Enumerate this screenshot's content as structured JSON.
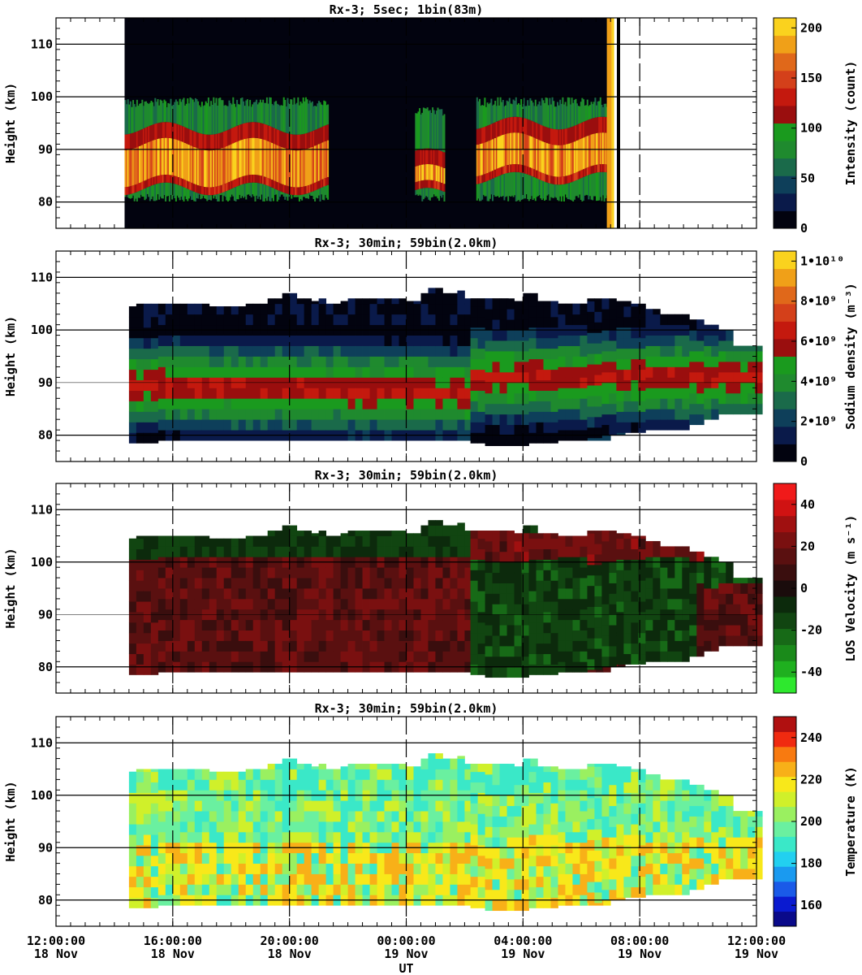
{
  "chart_data": [
    {
      "type": "heatmap",
      "title": "Rx-3;  5sec; 1bin(83m)",
      "ylabel": "Height (km)",
      "ylim": [
        75,
        115
      ],
      "yticks": [
        80,
        90,
        100,
        110
      ],
      "xlim_hours_from_start": [
        0,
        24
      ],
      "colorbar": {
        "label": "Intensity (count)",
        "range": [
          0,
          210
        ],
        "ticks": [
          {
            "value": 0,
            "label": "0"
          },
          {
            "value": 50,
            "label": "50"
          },
          {
            "value": 100,
            "label": "100"
          },
          {
            "value": 150,
            "label": "150"
          },
          {
            "value": 200,
            "label": "200"
          }
        ],
        "colors": [
          "#02030f",
          "#0a1a4a",
          "#0e3f5a",
          "#1a6a4a",
          "#1f8a2e",
          "#1a9a1e",
          "#9a0e0e",
          "#c4190e",
          "#d4401a",
          "#e0681a",
          "#f0a018",
          "#fad21e"
        ]
      },
      "segments": [
        {
          "start": 2.35,
          "end": 9.3,
          "peak": [
            84,
            91
          ],
          "active": [
            80,
            100
          ]
        },
        {
          "start": 12.3,
          "end": 13.3,
          "peak": [
            83,
            86
          ],
          "active": [
            80,
            98
          ]
        },
        {
          "start": 14.4,
          "end": 18.9,
          "peak": [
            86,
            92
          ],
          "active": [
            80,
            100
          ]
        }
      ],
      "data_span": [
        2.35,
        19.0
      ],
      "gridlines": [
        80,
        90,
        100,
        110
      ]
    },
    {
      "type": "heatmap",
      "title": "Rx-3; 30min; 59bin(2.0km)",
      "ylabel": "Height (km)",
      "ylim": [
        75,
        115
      ],
      "yticks": [
        80,
        90,
        100,
        110
      ],
      "colorbar": {
        "label": "Sodium density (m⁻³)",
        "range": [
          0,
          10500000000.0
        ],
        "ticks": [
          {
            "value": 0,
            "label": "0"
          },
          {
            "value": 2000000000.0,
            "label": "2•10⁹"
          },
          {
            "value": 4000000000.0,
            "label": "4•10⁹"
          },
          {
            "value": 6000000000.0,
            "label": "6•10⁹"
          },
          {
            "value": 8000000000.0,
            "label": "8•10⁹"
          },
          {
            "value": 10000000000.0,
            "label": "1•10¹⁰"
          }
        ],
        "colors": [
          "#02030f",
          "#0a1a4a",
          "#0e3f5a",
          "#1a6a4a",
          "#1f8a2e",
          "#1a9a1e",
          "#9a0e0e",
          "#c4190e",
          "#d4401a",
          "#e0681a",
          "#f0a018",
          "#fad21e"
        ]
      },
      "field": "sodium"
    },
    {
      "type": "heatmap",
      "title": "Rx-3; 30min; 59bin(2.0km)",
      "ylabel": "Height (km)",
      "ylim": [
        75,
        115
      ],
      "yticks": [
        80,
        90,
        100,
        110
      ],
      "colorbar": {
        "label": "LOS Velocity (m s⁻¹)",
        "range": [
          -50,
          50
        ],
        "ticks": [
          {
            "value": -40,
            "label": "-40"
          },
          {
            "value": -20,
            "label": "-20"
          },
          {
            "value": 0,
            "label": "0"
          },
          {
            "value": 20,
            "label": "20"
          },
          {
            "value": 40,
            "label": "40"
          }
        ],
        "colors": [
          "#2ee82e",
          "#1fb01f",
          "#1a8a1a",
          "#176a17",
          "#114511",
          "#0c2a0c",
          "#1a0c0c",
          "#3a0e0e",
          "#5a1010",
          "#7a1010",
          "#a01010",
          "#d01212",
          "#f01a1a"
        ]
      },
      "field": "velocity"
    },
    {
      "type": "heatmap",
      "title": "Rx-3; 30min; 59bin(2.0km)",
      "ylabel": "Height (km)",
      "ylim": [
        75,
        115
      ],
      "yticks": [
        80,
        90,
        100,
        110
      ],
      "colorbar": {
        "label": "Temperature (K)",
        "range": [
          150,
          250
        ],
        "ticks": [
          {
            "value": 160,
            "label": "160"
          },
          {
            "value": 180,
            "label": "180"
          },
          {
            "value": 200,
            "label": "200"
          },
          {
            "value": 220,
            "label": "220"
          },
          {
            "value": 240,
            "label": "240"
          }
        ],
        "colors": [
          "#0a0a8a",
          "#0a1ad0",
          "#1a5ae8",
          "#1a9af0",
          "#22d0f0",
          "#3ae8c8",
          "#6af0a0",
          "#9af060",
          "#d0f02a",
          "#f8e81a",
          "#f8b018",
          "#f87a10",
          "#f02a10",
          "#b01010"
        ]
      },
      "field": "temperature"
    }
  ],
  "columns": {
    "bin_hours": 0.5,
    "group1_start": 2.5,
    "group1_tops": [
      104.5,
      105,
      105,
      105,
      105,
      105,
      105,
      105,
      105,
      105,
      105,
      104.5,
      104.5,
      104.5,
      104.5,
      104.5,
      105,
      105,
      105,
      106,
      106,
      107,
      107,
      106,
      106,
      105.5,
      106,
      105,
      105,
      105.5,
      106,
      106,
      106,
      106,
      106,
      106,
      106,
      106,
      105.5,
      105.5,
      107,
      108,
      108,
      107,
      107,
      107.5,
      106,
      106,
      106,
      106,
      106,
      106,
      105,
      105,
      107,
      107,
      105,
      105,
      105,
      105,
      105,
      105,
      105,
      105,
      105,
      105,
      104.5,
      104.5
    ],
    "group1_bottoms": [
      78.5,
      78.5,
      78.5,
      78.5,
      79,
      79,
      79,
      79,
      79,
      79,
      79,
      79,
      79,
      79,
      79,
      79,
      79,
      79,
      79,
      79,
      79,
      79,
      79,
      79,
      79,
      79,
      79,
      79,
      79,
      79,
      79,
      79,
      79,
      79,
      79,
      79,
      79,
      79,
      79,
      79,
      79,
      79,
      79,
      79,
      79,
      79,
      79,
      79,
      79,
      79,
      79,
      79,
      79,
      79,
      79,
      79,
      79,
      79,
      79,
      79,
      79,
      79,
      79,
      79,
      79,
      79,
      80,
      80
    ],
    "group2_start": 14.2,
    "group2_tops": [
      106,
      106,
      106,
      106,
      106,
      106,
      105.5,
      105.5,
      105.5,
      105.5,
      105.5,
      105.5,
      105,
      105,
      105,
      105,
      106,
      106,
      106,
      106,
      105.5,
      105.5,
      105,
      105,
      104,
      104,
      103,
      103,
      103,
      103,
      102,
      102,
      101,
      101,
      100,
      100,
      97,
      97,
      97,
      97
    ],
    "group2_bottoms": [
      78.5,
      78.5,
      78,
      78,
      78,
      78,
      78,
      78,
      78.5,
      78.5,
      78.5,
      78.5,
      79,
      79,
      79,
      79,
      79.5,
      79.5,
      80,
      80,
      80.5,
      80.5,
      80.5,
      80.5,
      81,
      81,
      81,
      81,
      81,
      81,
      82,
      82,
      83,
      83,
      84,
      84,
      84,
      84,
      84,
      84
    ]
  },
  "x_axis": {
    "label": "UT",
    "ticks": [
      {
        "time": "12:00:00",
        "date": "18 Nov"
      },
      {
        "time": "16:00:00",
        "date": "18 Nov"
      },
      {
        "time": "20:00:00",
        "date": "18 Nov"
      },
      {
        "time": "00:00:00",
        "date": "19 Nov"
      },
      {
        "time": "04:00:00",
        "date": "19 Nov"
      },
      {
        "time": "08:00:00",
        "date": "19 Nov"
      },
      {
        "time": "12:00:00",
        "date": "19 Nov"
      }
    ]
  }
}
